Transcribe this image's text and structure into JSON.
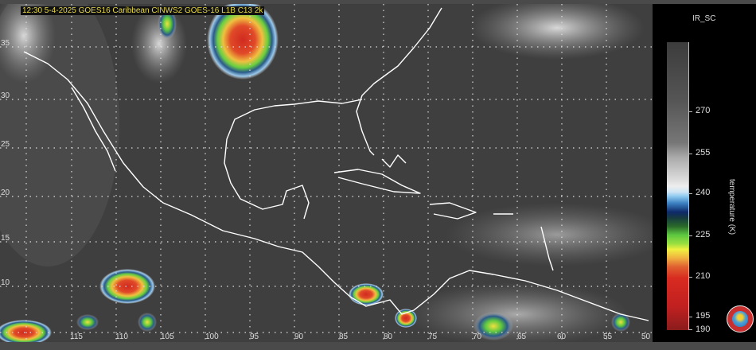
{
  "header": {
    "title": "12:30  5-4-2025 GOES16  Caribbean  CINWS2 GOES-16 L1B C13 2k"
  },
  "map": {
    "lat_labels": [
      "35",
      "30",
      "25",
      "20",
      "15",
      "10"
    ],
    "lon_labels": [
      "115",
      "110",
      "105",
      "100",
      "95",
      "90",
      "85",
      "80",
      "75",
      "70",
      "65",
      "60",
      "55",
      "50"
    ],
    "coastline_color": "#ffffff",
    "grid": "dotted"
  },
  "colorbar": {
    "title": "IR_SC",
    "label": "temperature (K)",
    "ticks": [
      "270",
      "255",
      "240",
      "225",
      "210",
      "195",
      "190"
    ],
    "range": [
      190,
      280
    ],
    "colors": [
      "#3c3c3c",
      "#dddddd",
      "#8fcaf0",
      "#0e2a6a",
      "#5ec840",
      "#f0f040",
      "#d82a20",
      "#8a1c1c"
    ]
  },
  "logo": {
    "name": "agency-seal"
  }
}
